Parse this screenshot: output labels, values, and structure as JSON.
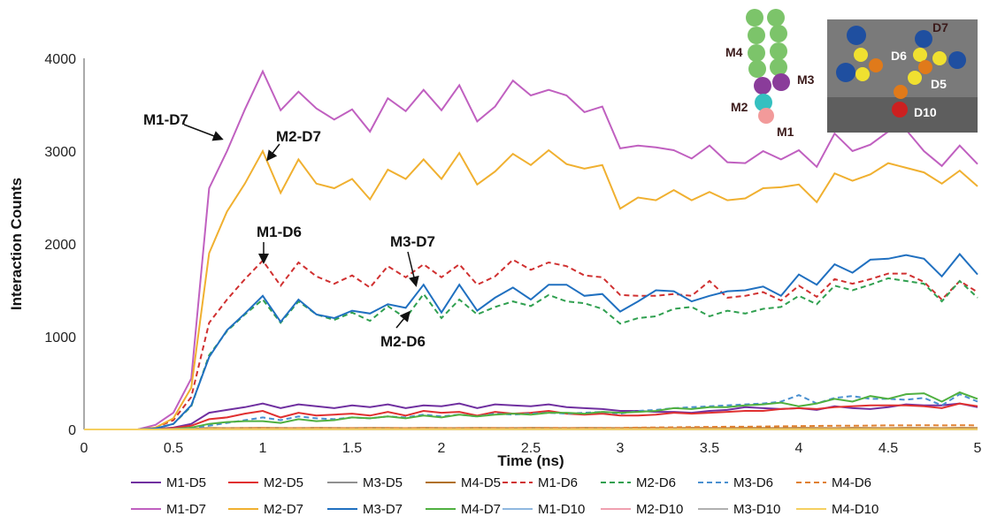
{
  "chart_data": {
    "type": "line",
    "xlabel": "Time (ns)",
    "ylabel": "Interaction Counts",
    "xlim": [
      0,
      5
    ],
    "ylim": [
      0,
      4000
    ],
    "xticks": [
      "0",
      "0.5",
      "1",
      "1.5",
      "2",
      "2.5",
      "3",
      "3.5",
      "4",
      "4.5",
      "5"
    ],
    "yticks": [
      "0",
      "1000",
      "2000",
      "3000",
      "4000"
    ],
    "grid": false,
    "legend_position": "bottom",
    "x": [
      0,
      0.1,
      0.2,
      0.3,
      0.4,
      0.5,
      0.6,
      0.7,
      0.8,
      0.9,
      1.0,
      1.1,
      1.2,
      1.3,
      1.4,
      1.5,
      1.6,
      1.7,
      1.8,
      1.9,
      2.0,
      2.1,
      2.2,
      2.3,
      2.4,
      2.5,
      2.6,
      2.7,
      2.8,
      2.9,
      3.0,
      3.1,
      3.2,
      3.3,
      3.4,
      3.5,
      3.6,
      3.7,
      3.8,
      3.9,
      4.0,
      4.1,
      4.2,
      4.3,
      4.4,
      4.5,
      4.6,
      4.7,
      4.8,
      4.9,
      5.0
    ],
    "series": [
      {
        "name": "M1-D5",
        "color": "#7030a0",
        "dash": false,
        "values": [
          0,
          0,
          0,
          0,
          5,
          20,
          60,
          180,
          210,
          240,
          280,
          230,
          270,
          250,
          230,
          260,
          240,
          270,
          230,
          260,
          250,
          280,
          230,
          270,
          260,
          250,
          270,
          240,
          230,
          220,
          200,
          200,
          190,
          190,
          180,
          200,
          210,
          240,
          230,
          220,
          230,
          210,
          250,
          230,
          220,
          240,
          270,
          260,
          260,
          280,
          240
        ]
      },
      {
        "name": "M2-D5",
        "color": "#e03030",
        "dash": false,
        "values": [
          0,
          0,
          0,
          0,
          3,
          15,
          40,
          110,
          130,
          170,
          200,
          130,
          180,
          150,
          160,
          170,
          150,
          190,
          150,
          200,
          180,
          190,
          150,
          190,
          170,
          180,
          200,
          170,
          160,
          170,
          150,
          150,
          160,
          180,
          170,
          180,
          190,
          200,
          200,
          220,
          230,
          220,
          240,
          250,
          260,
          260,
          260,
          250,
          230,
          280,
          250
        ]
      },
      {
        "name": "M3-D5",
        "color": "#909090",
        "dash": false,
        "values": [
          0,
          0,
          0,
          0,
          0,
          2,
          5,
          10,
          10,
          12,
          10,
          12,
          11,
          10,
          12,
          11,
          10,
          12,
          11,
          12,
          10,
          12,
          11,
          10,
          12,
          11,
          12,
          10,
          11,
          12,
          10,
          11,
          12,
          10,
          11,
          12,
          10,
          11,
          12,
          10,
          11,
          12,
          10,
          11,
          12,
          10,
          11,
          12,
          10,
          11,
          12
        ]
      },
      {
        "name": "M4-D5",
        "color": "#b07020",
        "dash": false,
        "values": [
          0,
          0,
          0,
          0,
          0,
          3,
          8,
          15,
          14,
          15,
          16,
          15,
          14,
          16,
          15,
          14,
          16,
          15,
          14,
          16,
          15,
          14,
          16,
          15,
          14,
          16,
          15,
          14,
          16,
          15,
          14,
          16,
          15,
          14,
          16,
          15,
          14,
          16,
          15,
          14,
          16,
          15,
          14,
          16,
          15,
          14,
          16,
          15,
          14,
          16,
          15
        ]
      },
      {
        "name": "M1-D6",
        "color": "#d03030",
        "dash": true,
        "values": [
          0,
          0,
          0,
          0,
          20,
          100,
          350,
          1150,
          1400,
          1620,
          1820,
          1550,
          1800,
          1650,
          1570,
          1660,
          1530,
          1760,
          1640,
          1780,
          1640,
          1780,
          1560,
          1650,
          1830,
          1720,
          1800,
          1760,
          1660,
          1640,
          1450,
          1440,
          1440,
          1460,
          1440,
          1600,
          1420,
          1440,
          1480,
          1390,
          1550,
          1430,
          1620,
          1570,
          1620,
          1680,
          1680,
          1590,
          1400,
          1600,
          1480
        ]
      },
      {
        "name": "M2-D6",
        "color": "#30a050",
        "dash": true,
        "values": [
          0,
          0,
          0,
          0,
          10,
          60,
          250,
          800,
          1060,
          1240,
          1400,
          1150,
          1380,
          1240,
          1180,
          1260,
          1170,
          1330,
          1200,
          1460,
          1200,
          1400,
          1240,
          1320,
          1380,
          1330,
          1450,
          1380,
          1360,
          1300,
          1140,
          1200,
          1220,
          1300,
          1320,
          1220,
          1280,
          1250,
          1300,
          1320,
          1440,
          1350,
          1550,
          1500,
          1560,
          1630,
          1600,
          1570,
          1380,
          1600,
          1420
        ]
      },
      {
        "name": "M3-D6",
        "color": "#4a90d0",
        "dash": true,
        "values": [
          0,
          0,
          0,
          0,
          0,
          5,
          15,
          40,
          70,
          100,
          130,
          100,
          140,
          120,
          110,
          130,
          120,
          140,
          130,
          160,
          140,
          160,
          140,
          170,
          160,
          170,
          180,
          170,
          180,
          190,
          170,
          200,
          210,
          230,
          240,
          250,
          260,
          270,
          280,
          300,
          370,
          280,
          340,
          360,
          330,
          330,
          320,
          340,
          260,
          380,
          300
        ]
      },
      {
        "name": "M4-D6",
        "color": "#e08030",
        "dash": true,
        "values": [
          0,
          0,
          0,
          0,
          0,
          2,
          5,
          10,
          12,
          14,
          15,
          13,
          15,
          14,
          13,
          15,
          14,
          16,
          14,
          15,
          14,
          16,
          14,
          15,
          16,
          15,
          17,
          16,
          15,
          16,
          17,
          20,
          22,
          24,
          26,
          28,
          30,
          30,
          32,
          34,
          36,
          38,
          40,
          40,
          42,
          44,
          44,
          46,
          44,
          46,
          44
        ]
      },
      {
        "name": "M1-D7",
        "color": "#c060c0",
        "dash": false,
        "values": [
          0,
          0,
          0,
          0,
          50,
          180,
          550,
          2600,
          3000,
          3450,
          3860,
          3440,
          3640,
          3460,
          3340,
          3450,
          3210,
          3570,
          3430,
          3660,
          3440,
          3710,
          3320,
          3480,
          3760,
          3600,
          3660,
          3600,
          3420,
          3480,
          3030,
          3060,
          3040,
          3010,
          2920,
          3060,
          2880,
          2870,
          3000,
          2910,
          3010,
          2830,
          3190,
          3000,
          3070,
          3210,
          3230,
          3000,
          2840,
          3060,
          2860
        ]
      },
      {
        "name": "M2-D7",
        "color": "#f0b030",
        "dash": false,
        "values": [
          0,
          0,
          0,
          0,
          20,
          120,
          450,
          1900,
          2350,
          2650,
          3000,
          2550,
          2910,
          2650,
          2600,
          2700,
          2480,
          2800,
          2700,
          2910,
          2700,
          2980,
          2640,
          2780,
          2970,
          2850,
          3010,
          2860,
          2810,
          2850,
          2380,
          2500,
          2470,
          2580,
          2470,
          2560,
          2470,
          2490,
          2600,
          2610,
          2640,
          2450,
          2760,
          2680,
          2750,
          2870,
          2820,
          2770,
          2650,
          2790,
          2620
        ]
      },
      {
        "name": "M3-D7",
        "color": "#2070c0",
        "dash": false,
        "values": [
          0,
          0,
          0,
          0,
          10,
          60,
          260,
          780,
          1070,
          1250,
          1440,
          1160,
          1400,
          1240,
          1200,
          1280,
          1250,
          1350,
          1310,
          1560,
          1260,
          1560,
          1280,
          1420,
          1530,
          1400,
          1560,
          1560,
          1440,
          1460,
          1270,
          1380,
          1500,
          1490,
          1380,
          1440,
          1490,
          1500,
          1540,
          1440,
          1670,
          1560,
          1780,
          1690,
          1830,
          1840,
          1880,
          1840,
          1650,
          1890,
          1670
        ]
      },
      {
        "name": "M4-D7",
        "color": "#50b040",
        "dash": false,
        "values": [
          0,
          0,
          0,
          0,
          0,
          5,
          20,
          60,
          80,
          90,
          90,
          70,
          110,
          90,
          100,
          130,
          120,
          140,
          120,
          150,
          130,
          160,
          140,
          160,
          170,
          160,
          180,
          180,
          170,
          190,
          180,
          190,
          200,
          230,
          220,
          240,
          240,
          260,
          270,
          290,
          250,
          280,
          330,
          300,
          360,
          330,
          380,
          390,
          300,
          400,
          330
        ]
      },
      {
        "name": "M1-D10",
        "color": "#90b8e0",
        "dash": false,
        "values": [
          0,
          0,
          0,
          0,
          0,
          1,
          2,
          3,
          3,
          3,
          3,
          3,
          3,
          3,
          3,
          3,
          3,
          3,
          3,
          3,
          3,
          3,
          3,
          3,
          3,
          3,
          3,
          3,
          3,
          3,
          3,
          3,
          3,
          3,
          3,
          3,
          3,
          3,
          3,
          3,
          3,
          3,
          3,
          3,
          3,
          3,
          3,
          3,
          3,
          3,
          3
        ]
      },
      {
        "name": "M2-D10",
        "color": "#f0a0b0",
        "dash": false,
        "values": [
          0,
          0,
          0,
          0,
          0,
          1,
          2,
          4,
          4,
          4,
          4,
          4,
          4,
          4,
          4,
          4,
          4,
          4,
          4,
          4,
          4,
          4,
          4,
          4,
          4,
          4,
          4,
          4,
          4,
          4,
          4,
          4,
          4,
          4,
          4,
          4,
          4,
          4,
          4,
          4,
          4,
          4,
          4,
          4,
          4,
          4,
          4,
          4,
          4,
          4,
          4
        ]
      },
      {
        "name": "M3-D10",
        "color": "#b0b0b0",
        "dash": false,
        "values": [
          0,
          0,
          0,
          0,
          0,
          1,
          2,
          2,
          2,
          2,
          2,
          2,
          2,
          2,
          2,
          2,
          2,
          2,
          2,
          2,
          2,
          2,
          2,
          2,
          2,
          2,
          2,
          2,
          2,
          2,
          2,
          2,
          2,
          2,
          2,
          2,
          2,
          2,
          2,
          2,
          2,
          2,
          2,
          2,
          2,
          2,
          2,
          2,
          2,
          2,
          2
        ]
      },
      {
        "name": "M4-D10",
        "color": "#f5d060",
        "dash": false,
        "values": [
          0,
          0,
          0,
          0,
          0,
          1,
          1,
          2,
          2,
          2,
          2,
          2,
          2,
          2,
          2,
          2,
          2,
          2,
          2,
          2,
          2,
          2,
          2,
          2,
          2,
          2,
          2,
          2,
          2,
          2,
          2,
          2,
          2,
          2,
          2,
          2,
          2,
          2,
          2,
          2,
          2,
          2,
          2,
          2,
          2,
          2,
          2,
          2,
          2,
          2,
          2
        ]
      }
    ],
    "annotations": [
      {
        "text": "M1-D7",
        "x": 0.79,
        "y": 3120
      },
      {
        "text": "M2-D7",
        "x": 1.03,
        "y": 2900
      },
      {
        "text": "M1-D6",
        "x": 1.0,
        "y": 1740
      },
      {
        "text": "M3-D7",
        "x": 1.87,
        "y": 1500
      },
      {
        "text": "M2-D6",
        "x": 1.8,
        "y": 1220
      }
    ]
  },
  "inset": {
    "molecule_labels": [
      "M4",
      "M3",
      "M2",
      "M1"
    ],
    "surface_labels": [
      "D7",
      "D6",
      "D5",
      "D10"
    ]
  }
}
